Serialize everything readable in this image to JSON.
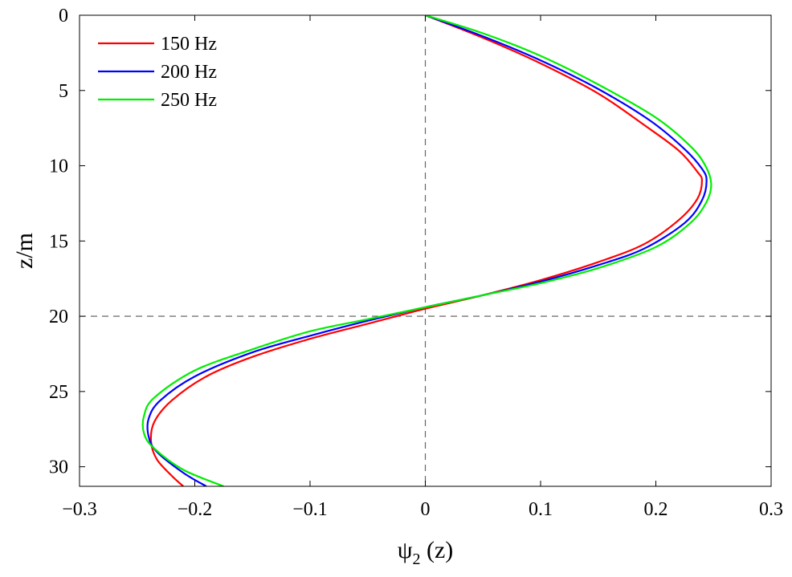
{
  "chart_data": {
    "type": "line",
    "xlabel_main": "ψ",
    "xlabel_sub": "2",
    "xlabel_rest": " (z)",
    "ylabel": "z/m",
    "xlim": [
      -0.3,
      0.3
    ],
    "ylim": [
      0,
      31.3
    ],
    "y_reversed": true,
    "x_ticks": [
      -0.3,
      -0.2,
      -0.1,
      0,
      0.1,
      0.2,
      0.3
    ],
    "x_tick_labels": [
      "−0.3",
      "−0.2",
      "−0.1",
      "0",
      "0.1",
      "0.2",
      "0.3"
    ],
    "y_ticks": [
      0,
      5,
      10,
      15,
      20,
      25,
      30
    ],
    "y_tick_labels": [
      "0",
      "5",
      "10",
      "15",
      "20",
      "25",
      "30"
    ],
    "reference_lines": {
      "vertical_x": 0,
      "horizontal_y": 20
    },
    "grid": false,
    "legend_position": "top-left",
    "series": [
      {
        "name": "150 Hz",
        "color": "#ff0000",
        "points": [
          [
            0,
            0
          ],
          [
            0.05,
            1.5
          ],
          [
            0.1,
            3.2
          ],
          [
            0.15,
            5.2
          ],
          [
            0.19,
            7.3
          ],
          [
            0.22,
            9.0
          ],
          [
            0.236,
            10.4
          ],
          [
            0.24,
            11.0
          ],
          [
            0.236,
            12.2
          ],
          [
            0.22,
            13.6
          ],
          [
            0.19,
            15.2
          ],
          [
            0.15,
            16.4
          ],
          [
            0.1,
            17.6
          ],
          [
            0.05,
            18.6
          ],
          [
            0,
            19.5
          ],
          [
            -0.05,
            20.5
          ],
          [
            -0.1,
            21.5
          ],
          [
            -0.15,
            22.7
          ],
          [
            -0.19,
            24.0
          ],
          [
            -0.22,
            25.6
          ],
          [
            -0.235,
            27.0
          ],
          [
            -0.238,
            28.3
          ],
          [
            -0.233,
            29.5
          ],
          [
            -0.22,
            30.6
          ],
          [
            -0.21,
            31.3
          ]
        ]
      },
      {
        "name": "200 Hz",
        "color": "#0000ff",
        "points": [
          [
            0,
            0
          ],
          [
            0.05,
            1.4
          ],
          [
            0.1,
            3.0
          ],
          [
            0.15,
            4.9
          ],
          [
            0.195,
            7.0
          ],
          [
            0.225,
            8.9
          ],
          [
            0.24,
            10.2
          ],
          [
            0.244,
            11.0
          ],
          [
            0.24,
            12.3
          ],
          [
            0.225,
            13.8
          ],
          [
            0.19,
            15.5
          ],
          [
            0.15,
            16.6
          ],
          [
            0.1,
            17.7
          ],
          [
            0.05,
            18.6
          ],
          [
            0,
            19.4
          ],
          [
            -0.05,
            20.3
          ],
          [
            -0.1,
            21.3
          ],
          [
            -0.15,
            22.4
          ],
          [
            -0.2,
            24.0
          ],
          [
            -0.23,
            25.6
          ],
          [
            -0.24,
            26.8
          ],
          [
            -0.24,
            28.0
          ],
          [
            -0.233,
            29.0
          ],
          [
            -0.21,
            30.4
          ],
          [
            -0.19,
            31.3
          ]
        ]
      },
      {
        "name": "250 Hz",
        "color": "#00ee00",
        "points": [
          [
            0,
            0
          ],
          [
            0.05,
            1.2
          ],
          [
            0.1,
            2.7
          ],
          [
            0.15,
            4.6
          ],
          [
            0.2,
            6.8
          ],
          [
            0.23,
            8.7
          ],
          [
            0.243,
            10.0
          ],
          [
            0.248,
            11.2
          ],
          [
            0.244,
            12.4
          ],
          [
            0.23,
            13.8
          ],
          [
            0.2,
            15.4
          ],
          [
            0.15,
            16.8
          ],
          [
            0.1,
            17.8
          ],
          [
            0.05,
            18.6
          ],
          [
            0,
            19.4
          ],
          [
            -0.05,
            20.2
          ],
          [
            -0.1,
            21.0
          ],
          [
            -0.15,
            22.2
          ],
          [
            -0.2,
            23.6
          ],
          [
            -0.235,
            25.4
          ],
          [
            -0.244,
            26.6
          ],
          [
            -0.244,
            27.8
          ],
          [
            -0.235,
            28.8
          ],
          [
            -0.21,
            30.2
          ],
          [
            -0.175,
            31.3
          ]
        ]
      }
    ]
  }
}
